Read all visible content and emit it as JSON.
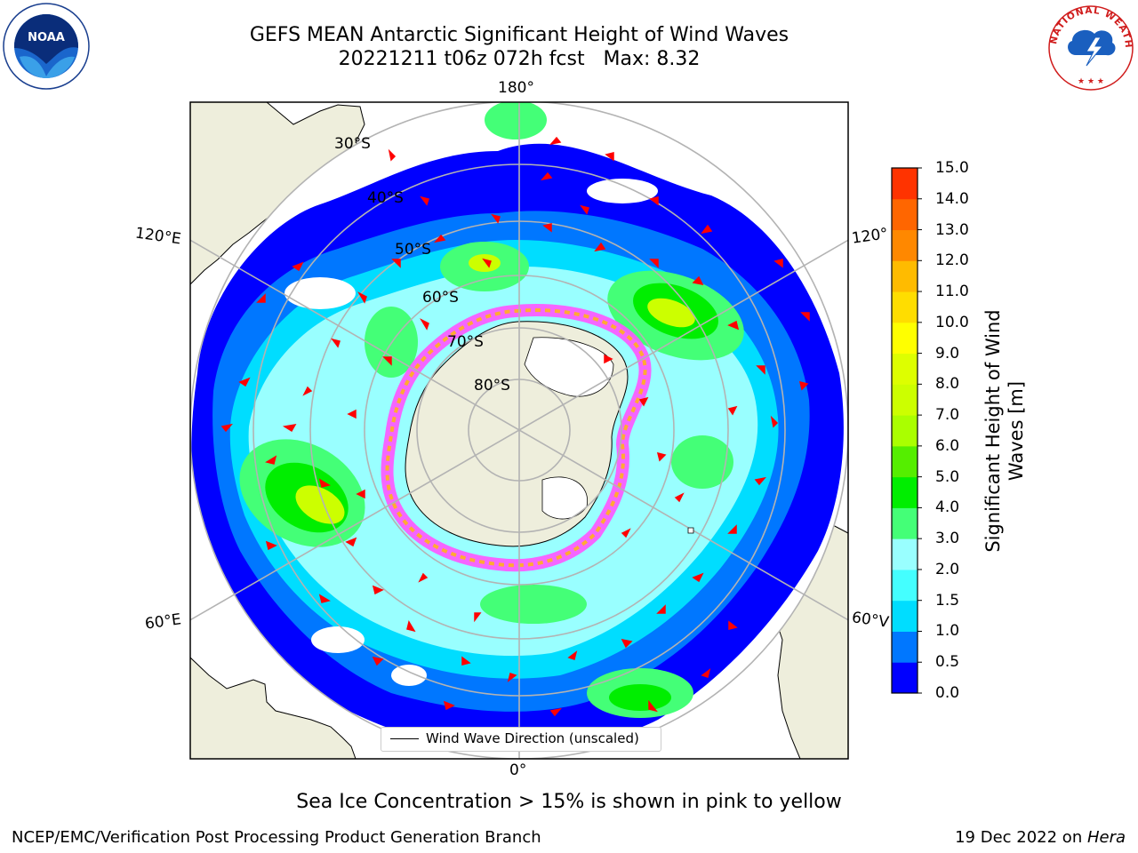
{
  "header": {
    "title_line1": "GEFS MEAN Antarctic Significant Height of Wind Waves",
    "title_line2": "20221211 t06z 072h fcst   Max: 8.32",
    "left_logo_text": "NOAA",
    "right_logo_text": "NATIONAL WEATHER SERVICE"
  },
  "map": {
    "longitude_labels": {
      "top": "180°",
      "bottom": "0°",
      "upper_left": "120°E",
      "lower_left": "60°E",
      "upper_right": "120°",
      "lower_right": "60°V"
    },
    "latitude_labels": [
      "30°S",
      "40°S",
      "50°S",
      "60°S",
      "70°S",
      "80°S"
    ],
    "legend_label": "Wind Wave Direction (unscaled)",
    "colors": {
      "land": "#eeeedc",
      "ocean_background": "#ffffff",
      "graticule": "#b3b3b3",
      "arrow": "#ff0000",
      "sea_ice": "#ff55ff"
    }
  },
  "colorbar": {
    "label": "Significant Height of Wind Waves [m]",
    "ticks": [
      "0.0",
      "0.5",
      "1.0",
      "1.5",
      "2.0",
      "3.0",
      "4.0",
      "5.0",
      "6.0",
      "7.0",
      "8.0",
      "9.0",
      "10.0",
      "11.0",
      "12.0",
      "13.0",
      "14.0",
      "15.0"
    ],
    "colors": [
      "#0000ff",
      "#0077ff",
      "#00ddff",
      "#44ffff",
      "#99ffff",
      "#44ff77",
      "#00ee00",
      "#55ee00",
      "#aaff00",
      "#ccff00",
      "#ddff00",
      "#ffff00",
      "#ffdd00",
      "#ffbb00",
      "#ff8800",
      "#ff6600",
      "#ff3300",
      "#ff0000"
    ]
  },
  "chart_data": {
    "type": "heatmap",
    "title": "GEFS MEAN Antarctic Significant Height of Wind Waves",
    "subtitle": "20221211 t06z 072h fcst   Max: 8.32",
    "max_value": 8.32,
    "colorbar_range": [
      0,
      15
    ],
    "colorbar_label": "Significant Height of Wind Waves [m]",
    "legend": "Wind Wave Direction (unscaled)"
  },
  "notes": {
    "sea_ice": "Sea Ice Concentration > 15% is shown in pink to yellow"
  },
  "footer": {
    "left": "NCEP/EMC/Verification Post Processing Product Generation Branch",
    "right_date": "19 Dec 2022 on ",
    "right_machine": "Hera"
  }
}
